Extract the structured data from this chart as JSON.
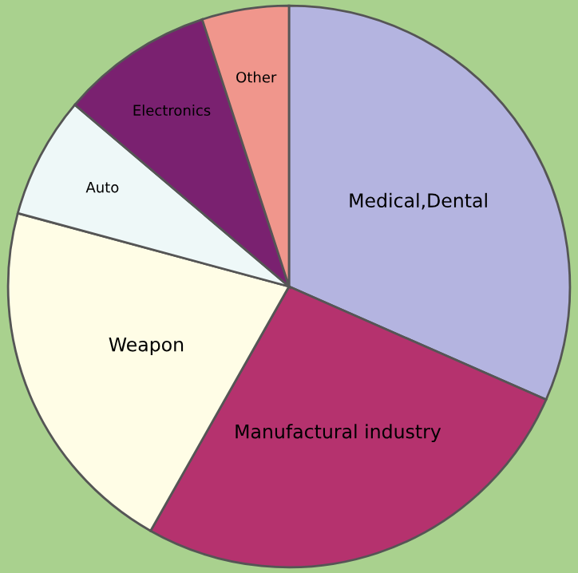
{
  "chart_data": {
    "type": "pie",
    "categories": [
      "Medical,Dental",
      "Manufactural industry",
      "Weapon",
      "Auto",
      "Electronics",
      "Other"
    ],
    "values": [
      31.6,
      26.6,
      21,
      7,
      8.8,
      5
    ],
    "colors": [
      "#b4b4e0",
      "#b5326e",
      "#fffde6",
      "#eef8f8",
      "#7a2170",
      "#f0968c"
    ],
    "legend": false
  }
}
